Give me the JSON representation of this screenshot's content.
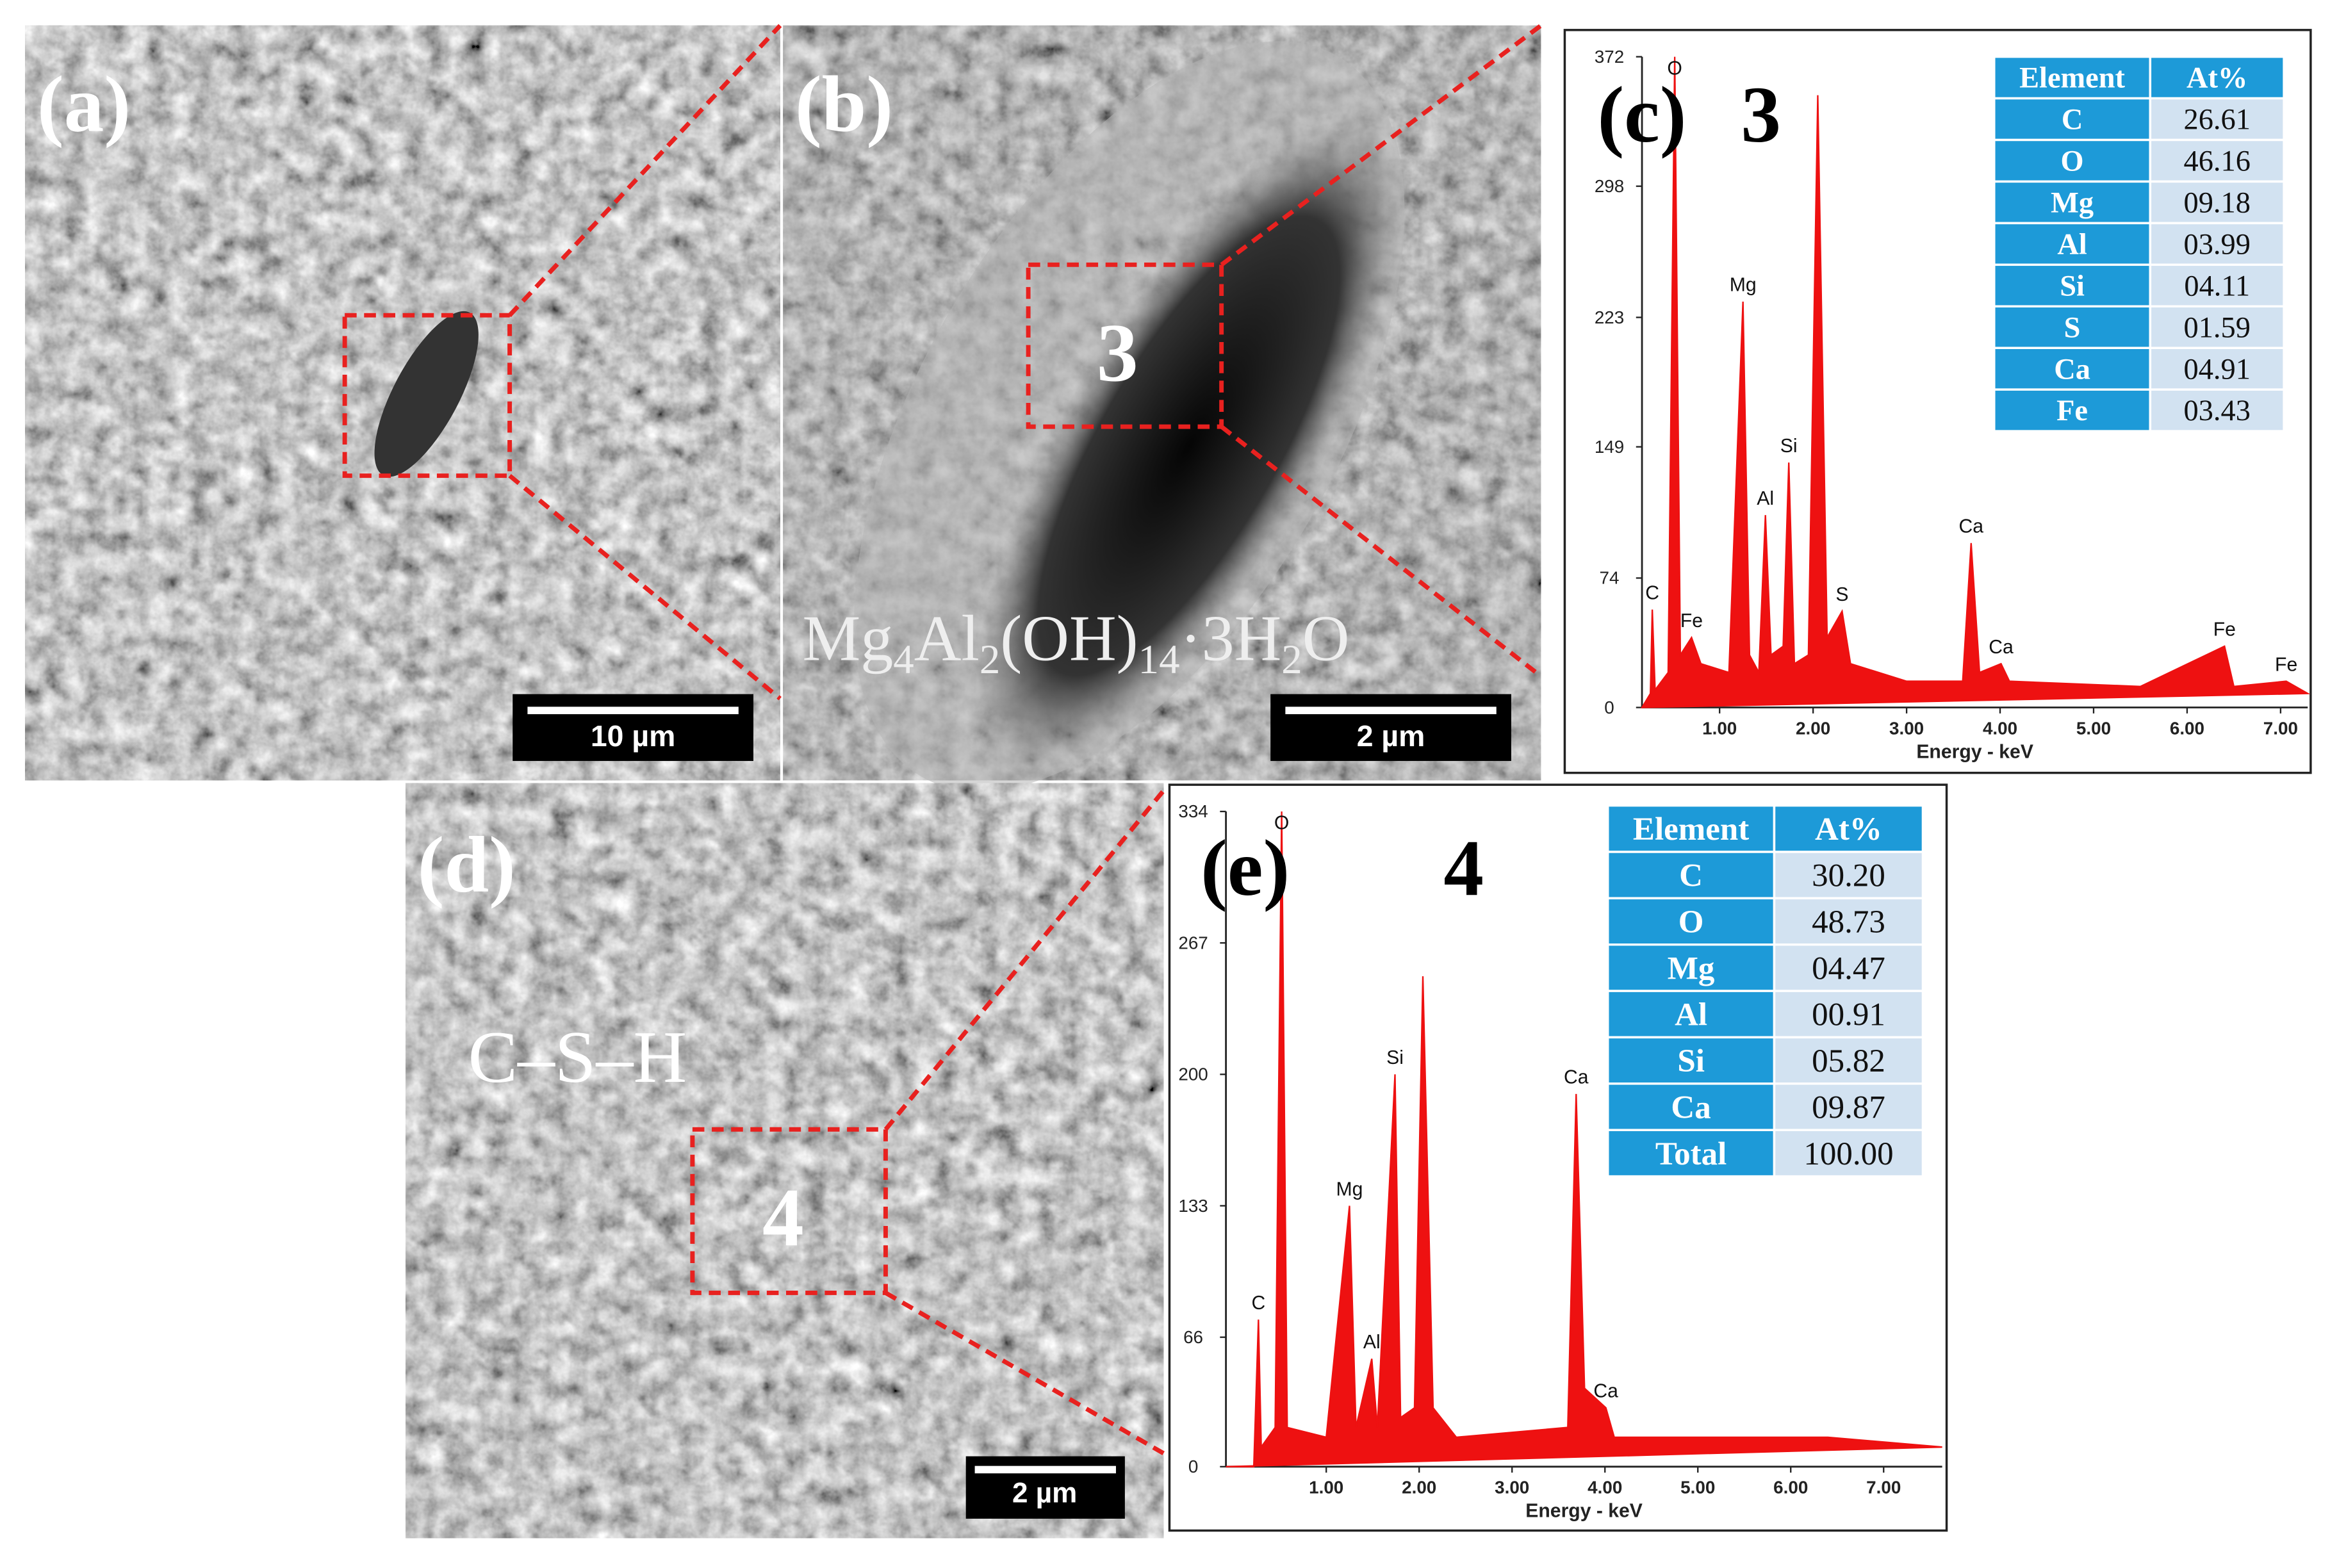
{
  "images": [
    {
      "label": "(a)",
      "scale_bar": "10 µm"
    },
    {
      "label": "(b)",
      "marker": "3",
      "formula_parts": [
        "Mg",
        "4",
        "Al",
        "2",
        "(OH)",
        "14",
        "·3H",
        "2",
        "O"
      ],
      "scale_bar": "2 µm"
    },
    {
      "label": "(d)",
      "annotation": "C–S–H",
      "marker": "4",
      "scale_bar": "2 µm"
    }
  ],
  "chart_data": [
    {
      "type": "area",
      "panel_label": "(c)",
      "title": "3",
      "x_label": "Energy - keV",
      "color": "#ee1111",
      "x": [
        0.17,
        0.26,
        0.28,
        0.31,
        0.45,
        0.52,
        0.58,
        0.7,
        0.8,
        1.1,
        1.25,
        1.32,
        1.42,
        1.49,
        1.55,
        1.68,
        1.74,
        1.8,
        1.95,
        2.05,
        2.15,
        2.31,
        2.4,
        3.0,
        3.6,
        3.69,
        3.78,
        4.01,
        4.1,
        5.5,
        6.4,
        6.5,
        7.06,
        7.29
      ],
      "values": [
        0,
        8,
        56,
        10,
        20,
        372,
        30,
        40,
        25,
        20,
        232,
        30,
        20,
        110,
        30,
        35,
        140,
        25,
        30,
        350,
        40,
        55,
        25,
        15,
        15,
        94,
        20,
        25,
        15,
        12,
        35,
        12,
        15,
        8
      ],
      "peak_labels": [
        null,
        null,
        "C",
        null,
        null,
        "O",
        null,
        "Fe",
        null,
        null,
        "Mg",
        null,
        null,
        "Al",
        null,
        null,
        "Si",
        null,
        null,
        null,
        null,
        "S",
        null,
        null,
        null,
        "Ca",
        null,
        "Ca",
        null,
        null,
        "Fe",
        null,
        "Fe",
        null
      ],
      "xlim": [
        0.17,
        7.29
      ],
      "ylim": [
        0,
        372
      ],
      "xticks": [
        {
          "value": 1,
          "label": "1.00"
        },
        {
          "value": 2,
          "label": "2.00"
        },
        {
          "value": 3,
          "label": "3.00"
        },
        {
          "value": 4,
          "label": "4.00"
        },
        {
          "value": 5,
          "label": "5.00"
        },
        {
          "value": 6,
          "label": "6.00"
        },
        {
          "value": 7,
          "label": "7.00"
        }
      ],
      "yticks": [
        0,
        74,
        149,
        223,
        298,
        372
      ],
      "table": {
        "columns": [
          "Element",
          "At%"
        ],
        "rows": [
          [
            "C",
            "26.61"
          ],
          [
            "O",
            "46.16"
          ],
          [
            "Mg",
            "09.18"
          ],
          [
            "Al",
            "03.99"
          ],
          [
            "Si",
            "04.11"
          ],
          [
            "S",
            "01.59"
          ],
          [
            "Ca",
            "04.91"
          ],
          [
            "Fe",
            "03.43"
          ]
        ]
      }
    },
    {
      "type": "area",
      "panel_label": "(e)",
      "title": "4",
      "x_label": "Energy - keV",
      "color": "#ee1111",
      "x": [
        -0.08,
        0.22,
        0.27,
        0.3,
        0.45,
        0.52,
        0.58,
        1.0,
        1.25,
        1.32,
        1.49,
        1.55,
        1.74,
        1.8,
        1.95,
        2.04,
        2.15,
        2.4,
        3.6,
        3.69,
        3.78,
        4.01,
        4.1,
        6.4,
        7.63
      ],
      "values": [
        0,
        0,
        75,
        10,
        20,
        334,
        20,
        15,
        133,
        20,
        55,
        20,
        200,
        25,
        30,
        250,
        30,
        15,
        20,
        190,
        40,
        30,
        15,
        15,
        10
      ],
      "peak_labels": [
        null,
        null,
        "C",
        null,
        null,
        "O",
        null,
        null,
        "Mg",
        null,
        "Al",
        null,
        "Si",
        null,
        null,
        null,
        null,
        null,
        null,
        "Ca",
        null,
        "Ca",
        null,
        null,
        null
      ],
      "xlim": [
        -0.08,
        7.63
      ],
      "ylim": [
        0,
        334
      ],
      "xticks": [
        {
          "value": 1,
          "label": "1.00"
        },
        {
          "value": 2,
          "label": "2.00"
        },
        {
          "value": 3,
          "label": "3.00"
        },
        {
          "value": 4,
          "label": "4.00"
        },
        {
          "value": 5,
          "label": "5.00"
        },
        {
          "value": 6,
          "label": "6.00"
        },
        {
          "value": 7,
          "label": "7.00"
        }
      ],
      "yticks": [
        0,
        66,
        133,
        200,
        267,
        334
      ],
      "table": {
        "columns": [
          "Element",
          "At%"
        ],
        "rows": [
          [
            "C",
            "30.20"
          ],
          [
            "O",
            "48.73"
          ],
          [
            "Mg",
            "04.47"
          ],
          [
            "Al",
            "00.91"
          ],
          [
            "Si",
            "05.82"
          ],
          [
            "Ca",
            "09.87"
          ],
          [
            "Total",
            "100.00"
          ]
        ]
      }
    }
  ]
}
